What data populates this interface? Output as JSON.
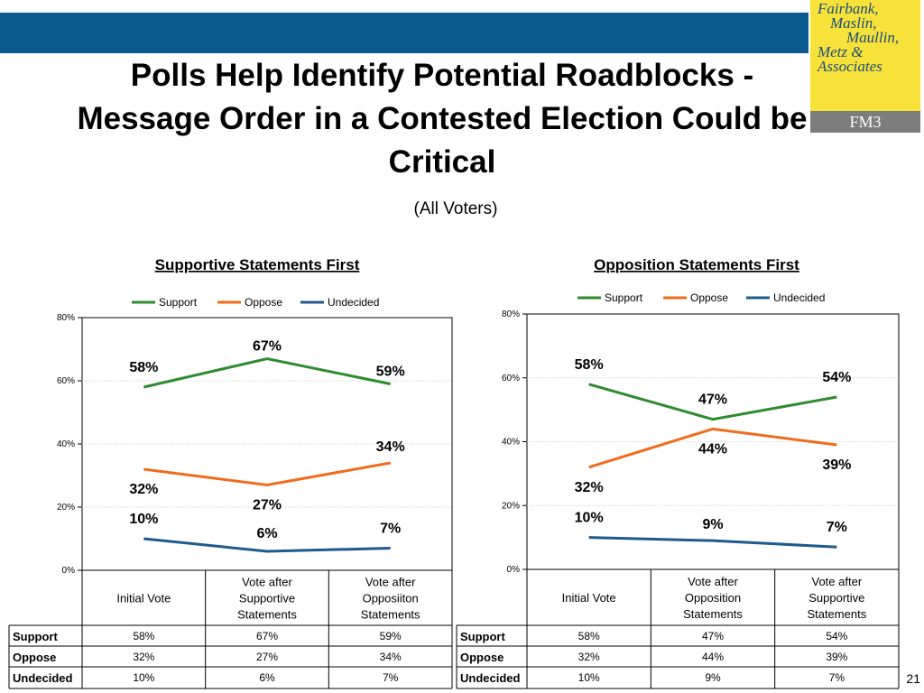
{
  "header": {
    "title": "Polls Help Identify Potential Roadblocks - Message Order in a Contested Election Could be Critical",
    "subtitle": "(All Voters)",
    "page_number": "21"
  },
  "logo": {
    "lines": [
      "Fairbank,",
      "Maslin,",
      "Maullin,",
      "Metz &",
      "Associates"
    ],
    "code": "FM3"
  },
  "colors": {
    "support": "#2e8b2e",
    "oppose": "#f26b1d",
    "undecided": "#1f5a8c",
    "top_bar": "#0b5a8f",
    "logo_bg": "#f7e23a"
  },
  "chart_data": [
    {
      "type": "line",
      "title": "Supportive Statements First",
      "categories": [
        "Initial Vote",
        "Vote after Supportive Statements",
        "Vote after Opposiiton Statements"
      ],
      "series": [
        {
          "name": "Support",
          "values": [
            58,
            67,
            59
          ],
          "labels": [
            "58%",
            "67%",
            "59%"
          ]
        },
        {
          "name": "Oppose",
          "values": [
            32,
            27,
            34
          ],
          "labels": [
            "32%",
            "27%",
            "34%"
          ]
        },
        {
          "name": "Undecided",
          "values": [
            10,
            6,
            7
          ],
          "labels": [
            "10%",
            "6%",
            "7%"
          ]
        }
      ],
      "ylim": [
        0,
        80
      ],
      "yticks": [
        0,
        20,
        40,
        60,
        80
      ],
      "ytick_labels": [
        "0%",
        "20%",
        "40%",
        "60%",
        "80%"
      ],
      "legend": "top",
      "table": [
        {
          "label": "Support",
          "cells": [
            "58%",
            "67%",
            "59%"
          ]
        },
        {
          "label": "Oppose",
          "cells": [
            "32%",
            "27%",
            "34%"
          ]
        },
        {
          "label": "Undecided",
          "cells": [
            "10%",
            "6%",
            "7%"
          ]
        }
      ]
    },
    {
      "type": "line",
      "title": "Opposition Statements First",
      "categories": [
        "Initial Vote",
        "Vote after Opposition Statements",
        "Vote after Supportive Statements"
      ],
      "series": [
        {
          "name": "Support",
          "values": [
            58,
            47,
            54
          ],
          "labels": [
            "58%",
            "47%",
            "54%"
          ]
        },
        {
          "name": "Oppose",
          "values": [
            32,
            44,
            39
          ],
          "labels": [
            "32%",
            "44%",
            "39%"
          ]
        },
        {
          "name": "Undecided",
          "values": [
            10,
            9,
            7
          ],
          "labels": [
            "10%",
            "9%",
            "7%"
          ]
        }
      ],
      "ylim": [
        0,
        80
      ],
      "yticks": [
        0,
        20,
        40,
        60,
        80
      ],
      "ytick_labels": [
        "0%",
        "20%",
        "40%",
        "60%",
        "80%"
      ],
      "legend": "top",
      "table": [
        {
          "label": "Support",
          "cells": [
            "58%",
            "47%",
            "54%"
          ]
        },
        {
          "label": "Oppose",
          "cells": [
            "32%",
            "44%",
            "39%"
          ]
        },
        {
          "label": "Undecided",
          "cells": [
            "10%",
            "9%",
            "7%"
          ]
        }
      ]
    }
  ]
}
